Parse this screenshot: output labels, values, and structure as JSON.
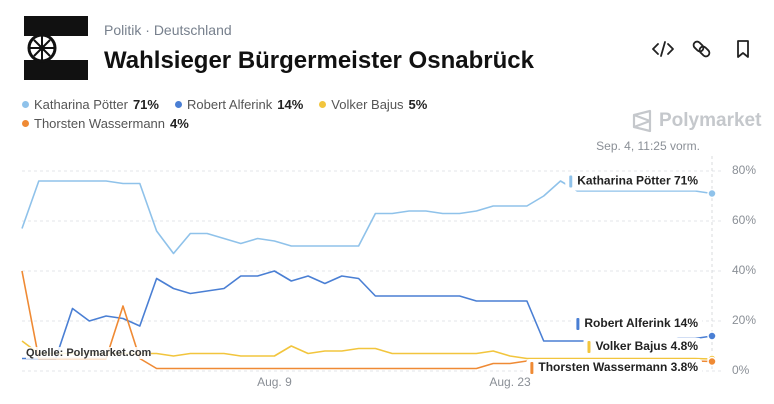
{
  "header": {
    "breadcrumb": [
      "Politik",
      "Deutschland"
    ],
    "title": "Wahlsieger Bürgermeister Osnabrück"
  },
  "brand": "Polymarket",
  "timestamp": "Sep. 4, 11:25 vorm.",
  "source": "Quelle: Polymarket.com",
  "chart_data": {
    "type": "line",
    "categories": [
      null,
      null,
      null,
      null,
      null,
      null,
      null,
      null,
      null,
      null,
      null,
      null,
      null,
      null,
      null,
      "Aug. 9",
      null,
      null,
      null,
      null,
      null,
      null,
      null,
      null,
      null,
      null,
      null,
      null,
      null,
      "Aug. 23",
      null,
      null,
      null,
      null,
      null,
      null,
      null,
      null,
      null,
      null,
      null,
      null
    ],
    "series": [
      {
        "name": "Katharina Pötter",
        "color": "#8fc2ea",
        "legend_value_label": "71%",
        "end_value_label": "71%",
        "values": [
          57,
          76,
          76,
          76,
          76,
          76,
          75,
          75,
          56,
          47,
          55,
          55,
          53,
          51,
          53,
          52,
          50,
          50,
          50,
          50,
          50,
          63,
          63,
          64,
          64,
          63,
          63,
          64,
          66,
          66,
          66,
          70,
          76,
          72,
          72,
          72,
          72,
          72,
          72,
          72,
          72,
          71
        ]
      },
      {
        "name": "Robert Alferink",
        "color": "#4a7fd4",
        "legend_value_label": "14%",
        "end_value_label": "14%",
        "values": [
          5,
          5,
          5,
          25,
          20,
          22,
          21,
          18,
          37,
          33,
          31,
          32,
          33,
          38,
          38,
          40,
          36,
          38,
          35,
          38,
          37,
          30,
          30,
          30,
          30,
          30,
          30,
          28,
          28,
          28,
          28,
          12,
          12,
          12,
          12,
          12,
          12,
          12,
          12,
          13,
          13,
          14
        ]
      },
      {
        "name": "Volker Bajus",
        "color": "#f2c53d",
        "legend_value_label": "5%",
        "end_value_label": "4.8%",
        "values": [
          12,
          7,
          7,
          7,
          7,
          7,
          7,
          7,
          7,
          6,
          7,
          7,
          7,
          6,
          6,
          6,
          10,
          7,
          8,
          8,
          9,
          9,
          7,
          7,
          7,
          7,
          7,
          7,
          8,
          6,
          5,
          5,
          5,
          5,
          5,
          5,
          5,
          5,
          5,
          5,
          5,
          4.8
        ]
      },
      {
        "name": "Thorsten Wassermann",
        "color": "#ef8a34",
        "legend_value_label": "4%",
        "end_value_label": "3.8%",
        "values": [
          40,
          5,
          5,
          5,
          5,
          5,
          26,
          5,
          1,
          1,
          1,
          1,
          1,
          1,
          1,
          1,
          1,
          1,
          1,
          1,
          1,
          1,
          1,
          1,
          1,
          1,
          1,
          1,
          3,
          3,
          4,
          4,
          4,
          4,
          4,
          4,
          4,
          4,
          4,
          4,
          4,
          3.8
        ]
      }
    ],
    "ylim": [
      0,
      86
    ],
    "yticks": [
      {
        "value": 0,
        "label": "0%"
      },
      {
        "value": 20,
        "label": "20%"
      },
      {
        "value": 40,
        "label": "40%"
      },
      {
        "value": 60,
        "label": "60%"
      },
      {
        "value": 80,
        "label": "80%"
      }
    ],
    "grid": true
  }
}
